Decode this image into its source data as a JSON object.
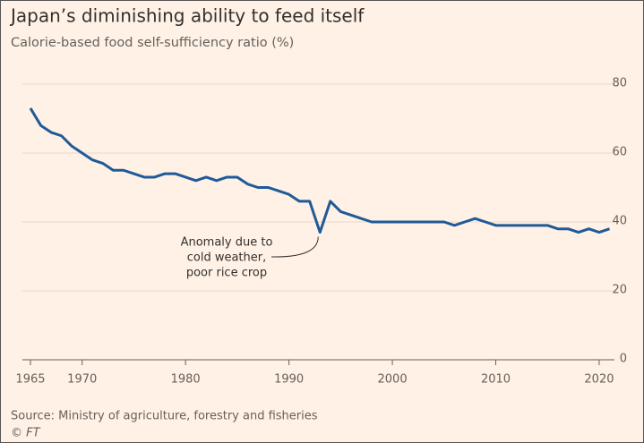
{
  "chart_data": {
    "type": "line",
    "title": "Japan’s diminishing ability to feed itself",
    "subtitle": "Calorie-based food self-sufficiency ratio (%)",
    "source": "Source: Ministry of agriculture, forestry and fisheries",
    "credit": "© FT",
    "annotation": {
      "lines": [
        "Anomaly due to",
        "cold weather,",
        "poor rice crop"
      ],
      "x": 1993,
      "y": 37
    },
    "x": [
      1965,
      1966,
      1967,
      1968,
      1969,
      1970,
      1971,
      1972,
      1973,
      1974,
      1975,
      1976,
      1977,
      1978,
      1979,
      1980,
      1981,
      1982,
      1983,
      1984,
      1985,
      1986,
      1987,
      1988,
      1989,
      1990,
      1991,
      1992,
      1993,
      1994,
      1995,
      1996,
      1997,
      1998,
      1999,
      2000,
      2001,
      2002,
      2003,
      2004,
      2005,
      2006,
      2007,
      2008,
      2009,
      2010,
      2011,
      2012,
      2013,
      2014,
      2015,
      2016,
      2017,
      2018,
      2019,
      2020,
      2021
    ],
    "series": [
      {
        "color": "#1f5a99",
        "values": [
          73,
          68,
          66,
          65,
          62,
          60,
          58,
          57,
          55,
          55,
          54,
          53,
          53,
          54,
          54,
          53,
          52,
          53,
          52,
          53,
          53,
          51,
          50,
          50,
          49,
          48,
          46,
          46,
          37,
          46,
          43,
          42,
          41,
          40,
          40,
          40,
          40,
          40,
          40,
          40,
          40,
          39,
          40,
          41,
          40,
          39,
          39,
          39,
          39,
          39,
          39,
          38,
          38,
          37,
          38,
          37,
          38
        ]
      }
    ],
    "xlim": [
      1965,
      2021
    ],
    "xticks": [
      1965,
      1970,
      1980,
      1990,
      2000,
      2010,
      2020
    ],
    "ylim": [
      0,
      80
    ],
    "yticks": [
      0,
      20,
      40,
      60,
      80
    ],
    "grid": true
  }
}
